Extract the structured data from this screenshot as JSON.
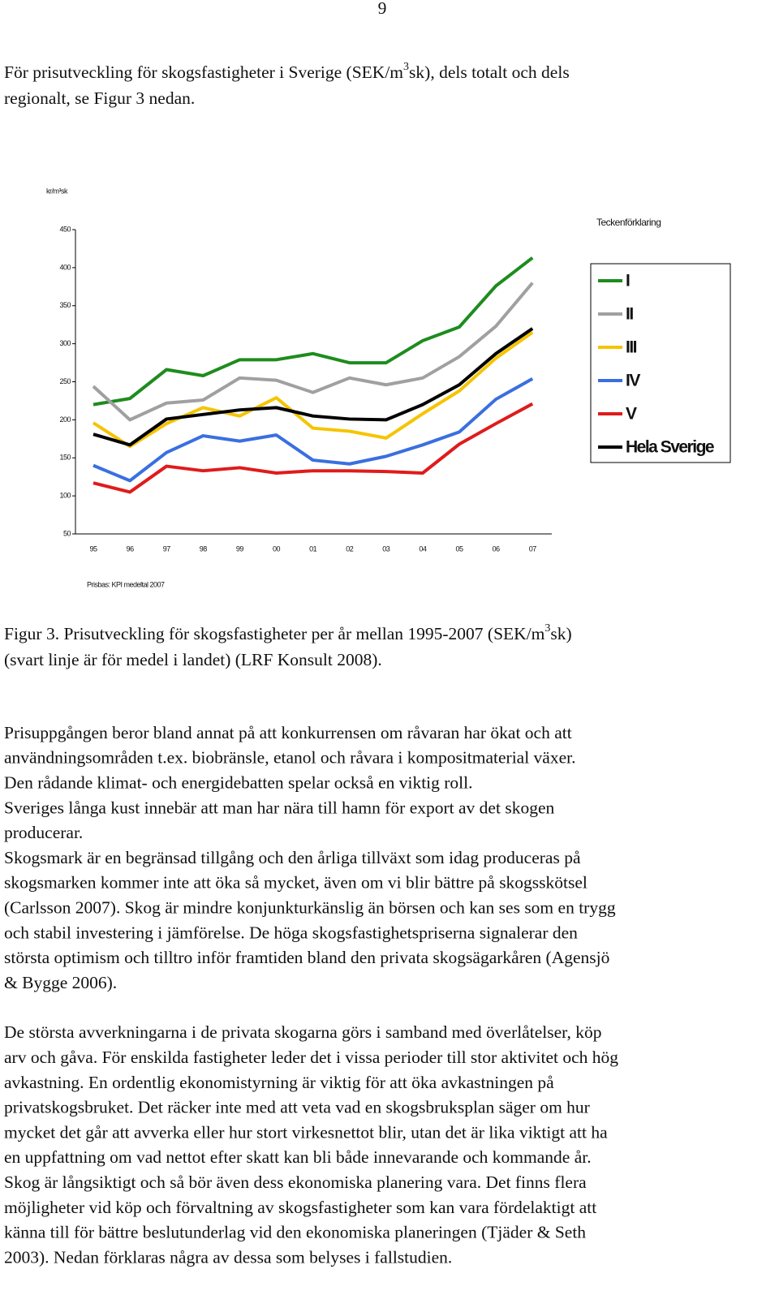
{
  "page_number": "9",
  "intro": {
    "lines": [
      {
        "before": "För prisutveckling för skogsfastigheter i Sverige (SEK/m",
        "sup": "3",
        "after": "sk), dels totalt och dels"
      },
      {
        "text": "regionalt, se Figur 3 nedan."
      }
    ]
  },
  "chart_data": {
    "type": "line",
    "y_label": "kr/m³sk",
    "note": "Prisbas: KPI medeltal 2007",
    "legend_title": "Teckenförklaring",
    "legend": "right",
    "grid": false,
    "categories": [
      "95",
      "96",
      "97",
      "98",
      "99",
      "00",
      "01",
      "02",
      "03",
      "04",
      "05",
      "06",
      "07"
    ],
    "ylim": [
      50,
      450
    ],
    "yticks": [
      50,
      100,
      150,
      200,
      250,
      300,
      350,
      400,
      450
    ],
    "series": [
      {
        "name": "I",
        "color": "#1e8c1e",
        "values": [
          220,
          228,
          266,
          258,
          279,
          279,
          287,
          275,
          275,
          304,
          322,
          376,
          413
        ]
      },
      {
        "name": "II",
        "color": "#a0a0a0",
        "values": [
          244,
          200,
          222,
          226,
          255,
          252,
          236,
          255,
          246,
          255,
          283,
          323,
          380
        ]
      },
      {
        "name": "III",
        "color": "#f5c400",
        "values": [
          196,
          165,
          195,
          216,
          205,
          229,
          189,
          185,
          176,
          208,
          238,
          281,
          315
        ]
      },
      {
        "name": "IV",
        "color": "#3a6fe0",
        "values": [
          140,
          120,
          157,
          179,
          172,
          180,
          147,
          142,
          152,
          167,
          184,
          227,
          254
        ]
      },
      {
        "name": "V",
        "color": "#e01b1b",
        "values": [
          117,
          105,
          139,
          133,
          137,
          130,
          133,
          133,
          132,
          130,
          168,
          195,
          221
        ]
      },
      {
        "name": "Hela Sverige",
        "color": "#000000",
        "values": [
          181,
          167,
          201,
          207,
          213,
          216,
          205,
          201,
          200,
          220,
          246,
          287,
          320
        ]
      }
    ]
  },
  "caption": {
    "lines": [
      {
        "before": "Figur 3. Prisutveckling för skogsfastigheter per år mellan 1995-2007 (SEK/m",
        "sup": "3",
        "after": "sk)"
      },
      {
        "text": "(svart linje är för medel i landet) (LRF Konsult 2008)."
      }
    ]
  },
  "paragraphs": [
    {
      "lines": [
        "Prisuppgången beror bland annat på att konkurrensen om råvaran har ökat och att",
        "användningsområden t.ex. biobränsle, etanol och råvara i kompositmaterial växer.",
        "Den rådande klimat- och energidebatten spelar också en viktig roll.",
        "Sveriges långa kust innebär att man har nära till hamn för export av det skogen",
        "producerar.",
        "Skogsmark är en begränsad tillgång och den årliga tillväxt som idag produceras på",
        "skogsmarken kommer inte att öka så mycket, även om vi blir bättre på skogsskötsel",
        "(Carlsson 2007). Skog är mindre konjunkturkänslig än börsen och kan ses som en trygg",
        "och stabil investering i jämförelse. De höga skogsfastighetspriserna signalerar den",
        "största optimism och tilltro inför framtiden bland den privata skogsägarkåren (Agensjö",
        "& Bygge 2006)."
      ]
    },
    {
      "lines": [
        "De största avverkningarna i de privata skogarna görs i samband med överlåtelser, köp",
        "arv och gåva. För enskilda fastigheter leder det i vissa perioder till stor aktivitet och hög",
        "avkastning. En ordentlig ekonomistyrning är viktig för att öka avkastningen på",
        "privatskogsbruket. Det räcker inte med att veta vad en skogsbruksplan säger om hur",
        "mycket det går att avverka eller hur stort virkesnettot blir, utan det är lika viktigt att ha",
        "en uppfattning om vad nettot efter skatt kan bli både innevarande och kommande år.",
        "Skog är långsiktigt och så bör även dess ekonomiska planering vara. Det finns flera",
        "möjligheter vid köp och förvaltning av skogsfastigheter som kan vara fördelaktigt att",
        "känna till för bättre beslutunderlag vid den ekonomiska planeringen (Tjäder & Seth",
        "2003). Nedan förklaras några av dessa som belyses i fallstudien."
      ]
    }
  ]
}
